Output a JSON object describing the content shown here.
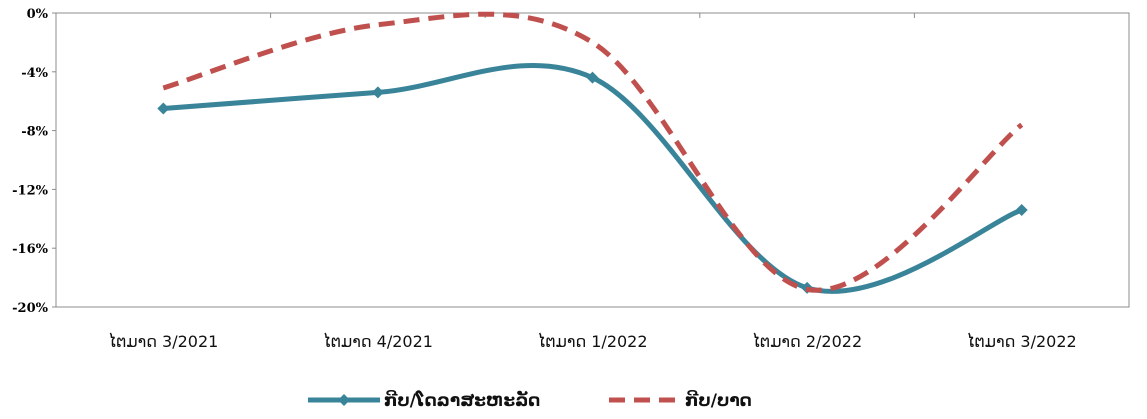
{
  "chart_data": {
    "type": "line",
    "categories": [
      "ໄຕມາດ 3/2021",
      "ໄຕມາດ 4/2021",
      "ໄຕມາດ 1/2022",
      "ໄຕມາດ 2/2022",
      "ໄຕມາດ 3/2022"
    ],
    "series": [
      {
        "name": "ກີບ/ໂດລາສະຫະລັດ",
        "values": [
          -6.5,
          -5.4,
          -4.4,
          -18.7,
          -13.4
        ],
        "color": "#3a8499",
        "style": "solid",
        "marker": "diamond"
      },
      {
        "name": "ກີບ/ບາດ",
        "values": [
          -5.1,
          -0.8,
          -2.0,
          -18.8,
          -7.6
        ],
        "color": "#c0504d",
        "style": "dashed",
        "marker": "none"
      }
    ],
    "ylim": [
      -20,
      0
    ],
    "yticks": [
      0,
      -4,
      -8,
      -12,
      -16,
      -20
    ],
    "ytick_labels": [
      "0%",
      "-4%",
      "-8%",
      "-12%",
      "-16%",
      "-20%"
    ],
    "smooth": true,
    "grid": false,
    "legend_position": "bottom",
    "title": "",
    "xlabel": "",
    "ylabel": ""
  }
}
